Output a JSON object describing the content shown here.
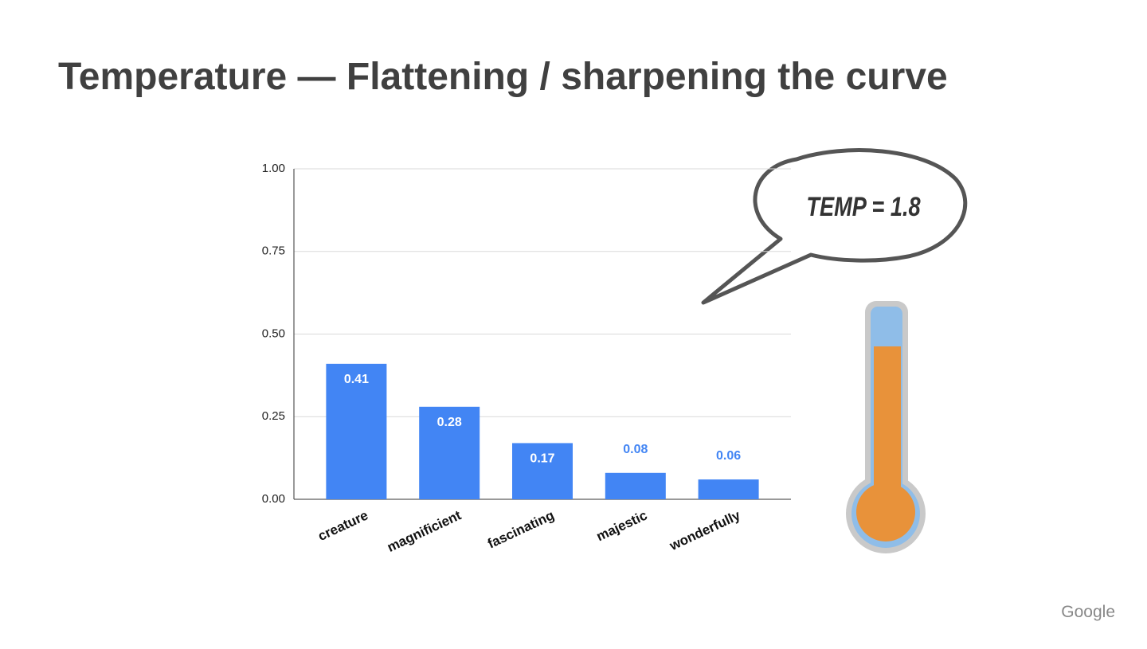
{
  "chart_data": {
    "type": "bar",
    "title": "Temperature — Flattening / sharpening the curve",
    "categories": [
      "creature",
      "magnificient",
      "fascinating",
      "majestic",
      "wonderfully"
    ],
    "values": [
      0.41,
      0.28,
      0.17,
      0.08,
      0.06
    ],
    "color": "#4285f4",
    "ylim": [
      0,
      1
    ],
    "yticks": [
      {
        "value": 0,
        "label": "0.00"
      },
      {
        "value": 0.25,
        "label": "0.25"
      },
      {
        "value": 0.5,
        "label": "0.50"
      },
      {
        "value": 0.75,
        "label": "0.75"
      },
      {
        "value": 1,
        "label": "1.00"
      }
    ],
    "grid": true,
    "annotations": [
      "TEMP = 1.8"
    ]
  },
  "footer": "Google"
}
